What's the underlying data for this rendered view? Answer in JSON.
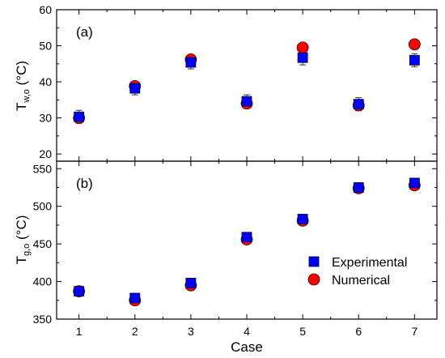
{
  "chart_data": [
    {
      "type": "scatter",
      "panel_label": "(a)",
      "ylabel": {
        "main": "T",
        "sub": "w,o",
        "unit": " (°C)"
      },
      "xlabel": "",
      "ylim": [
        18,
        60
      ],
      "yticks": [
        20,
        30,
        40,
        50,
        60
      ],
      "x": [
        1,
        2,
        3,
        4,
        5,
        6,
        7
      ],
      "series": [
        {
          "name": "Experimental",
          "marker": "square",
          "color": "#0000ff",
          "values": [
            30.3,
            38.2,
            45.4,
            34.6,
            46.7,
            33.8,
            46.0
          ],
          "error": [
            1.8,
            1.8,
            1.8,
            1.8,
            2.0,
            1.8,
            1.8
          ]
        },
        {
          "name": "Numerical",
          "marker": "circle",
          "color": "#ff0000",
          "values": [
            30.0,
            38.8,
            46.2,
            34.0,
            49.5,
            33.5,
            50.4
          ]
        }
      ]
    },
    {
      "type": "scatter",
      "panel_label": "(b)",
      "ylabel": {
        "main": "T",
        "sub": "g,o",
        "unit": " (°C)"
      },
      "xlabel": "Case",
      "ylim": [
        350,
        560
      ],
      "yticks": [
        350,
        400,
        450,
        500,
        550
      ],
      "x": [
        1,
        2,
        3,
        4,
        5,
        6,
        7
      ],
      "xticks": [
        1,
        2,
        3,
        4,
        5,
        6,
        7
      ],
      "series": [
        {
          "name": "Experimental",
          "marker": "square",
          "color": "#0000ff",
          "values": [
            387,
            378,
            398,
            459,
            483,
            525,
            531
          ],
          "error": [
            4,
            4,
            4,
            4,
            4,
            4,
            4
          ]
        },
        {
          "name": "Numerical",
          "marker": "circle",
          "color": "#ff0000",
          "values": [
            387,
            375,
            395,
            456,
            481,
            524,
            528
          ]
        }
      ],
      "legend": {
        "placement": "lower-right",
        "entries": [
          "Experimental",
          "Numerical"
        ]
      }
    }
  ]
}
